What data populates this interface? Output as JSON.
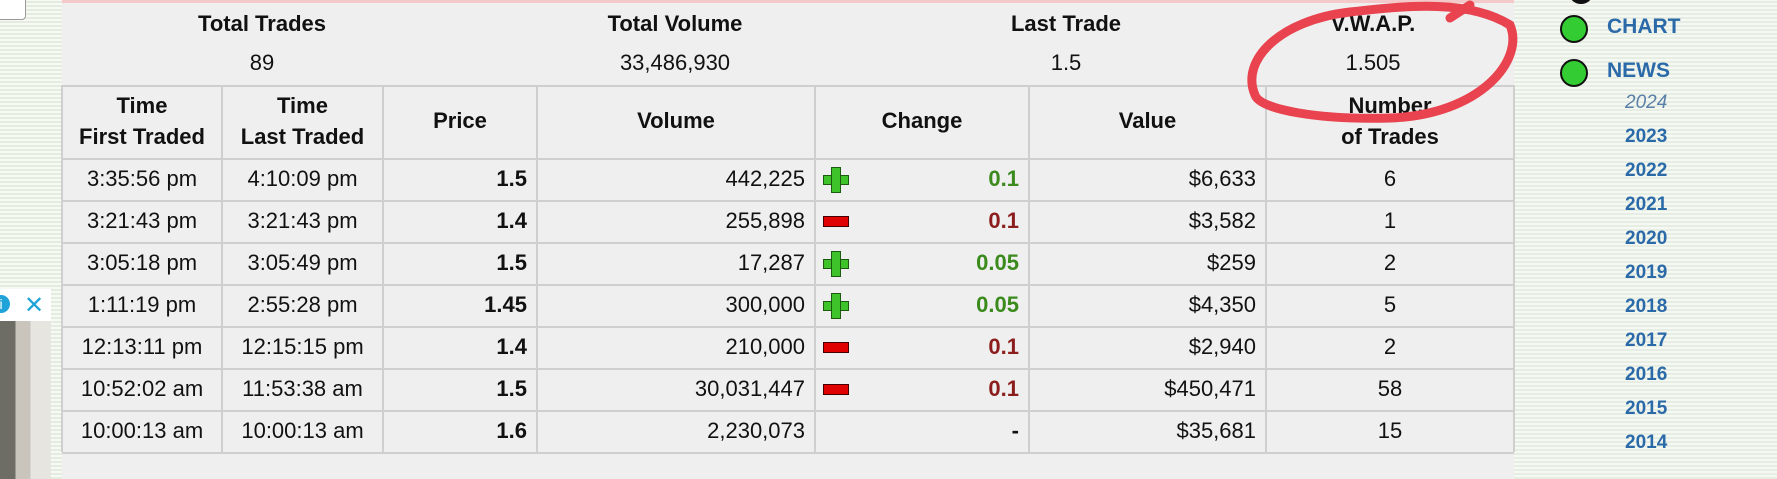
{
  "summary": {
    "labels": [
      "Total Trades",
      "Total Volume",
      "Last Trade",
      "V.W.A.P."
    ],
    "values": [
      "89",
      "33,486,930",
      "1.5",
      "1.505"
    ]
  },
  "table": {
    "headers": [
      [
        "Time",
        "First Traded"
      ],
      [
        "Time",
        "Last Traded"
      ],
      [
        "Price"
      ],
      [
        "Volume"
      ],
      [
        "Change"
      ],
      [
        "Value"
      ],
      [
        "Number",
        "of Trades"
      ]
    ],
    "rows": [
      [
        "3:35:56 pm",
        "4:10:09 pm",
        "1.5",
        "442,225",
        "0.1",
        "$6,633",
        "6"
      ],
      [
        "3:21:43 pm",
        "3:21:43 pm",
        "1.4",
        "255,898",
        "0.1",
        "$3,582",
        "1"
      ],
      [
        "3:05:18 pm",
        "3:05:49 pm",
        "1.5",
        "17,287",
        "0.05",
        "$259",
        "2"
      ],
      [
        "1:11:19 pm",
        "2:55:28 pm",
        "1.45",
        "300,000",
        "0.05",
        "$4,350",
        "5"
      ],
      [
        "12:13:11 pm",
        "12:15:15 pm",
        "1.4",
        "210,000",
        "0.1",
        "$2,940",
        "2"
      ],
      [
        "10:52:02 am",
        "11:53:38 am",
        "1.5",
        "30,031,447",
        "0.1",
        "$450,471",
        "58"
      ],
      [
        "10:00:13 am",
        "10:00:13 am",
        "1.6",
        "2,230,073",
        "-",
        "$35,681",
        "15"
      ]
    ],
    "change_icons": [
      "plus",
      "minus",
      "plus",
      "plus",
      "minus",
      "minus",
      null
    ]
  },
  "sidebar": {
    "links": [
      "CHART",
      "NEWS"
    ],
    "years": [
      "2024",
      "2023",
      "2022",
      "2021",
      "2020",
      "2019",
      "2018",
      "2017",
      "2016",
      "2015",
      "2014"
    ]
  }
}
